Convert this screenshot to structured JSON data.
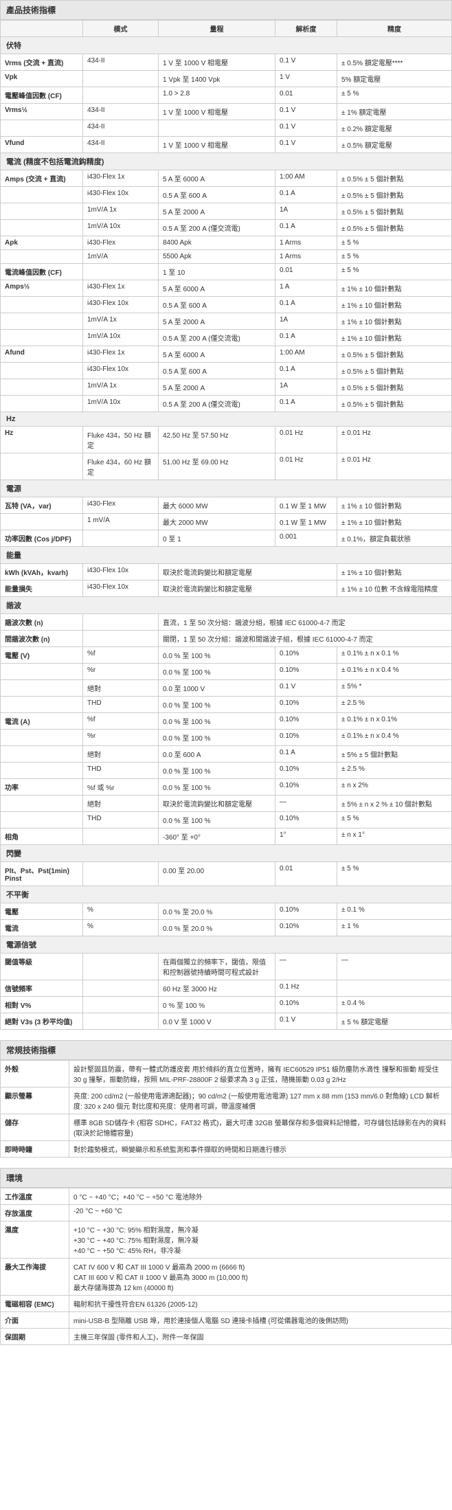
{
  "styles": {
    "bg_header": "#e8e8e8",
    "bg_subheader": "#f0f0f0",
    "border": "#cccccc",
    "font_body": 10,
    "font_header": 12
  },
  "spec_title": "產品技術指標",
  "cols": {
    "mode": "模式",
    "range": "量程",
    "res": "解析度",
    "acc": "精度"
  },
  "volt": {
    "header": "伏特",
    "rows": [
      {
        "label": "Vrms (交流 + 直流)",
        "mode": "434-II",
        "range": "1 V 至 1000 V 相電壓",
        "res": "0.1 V",
        "acc": "± 0.5% 額定電壓****"
      },
      {
        "label": "Vpk",
        "mode": "",
        "range": "1 Vpk 至 1400 Vpk",
        "res": "1 V",
        "acc": "5% 額定電壓"
      },
      {
        "label": "電壓峰值因數 (CF)",
        "mode": "",
        "range": "1.0 > 2.8",
        "res": "0.01",
        "acc": "± 5 %"
      },
      {
        "label": "Vrms½",
        "mode": "434-II",
        "range": "1 V 至 1000 V 相電壓",
        "res": "0.1 V",
        "acc": "± 1% 額定電壓"
      },
      {
        "label": "",
        "mode": "434-II",
        "range": "",
        "res": "0.1 V",
        "acc": "± 0.2% 額定電壓"
      },
      {
        "label": "Vfund",
        "mode": "434-II",
        "range": "1 V 至 1000 V 相電壓",
        "res": "0.1 V",
        "acc": "± 0.5% 額定電壓"
      }
    ]
  },
  "current": {
    "header": "電流 (精度不包括電流鈎精度)",
    "rows": [
      {
        "label": "Amps (交流 + 直流)",
        "mode": "i430-Flex 1x",
        "range": "5 A 至 6000 A",
        "res": "1:00 AM",
        "acc": "± 0.5% ± 5 個計數點"
      },
      {
        "label": "",
        "mode": "i430-Flex 10x",
        "range": "0.5 A 至 600 A",
        "res": "0.1 A",
        "acc": "± 0.5% ± 5 個計數點"
      },
      {
        "label": "",
        "mode": "1mV/A 1x",
        "range": "5 A 至 2000 A",
        "res": "1A",
        "acc": "± 0.5% ± 5 個計數點"
      },
      {
        "label": "",
        "mode": "1mV/A 10x",
        "range": "0.5 A 至 200 A (僅交流電)",
        "res": "0.1 A",
        "acc": "± 0.5% ± 5 個計數點"
      },
      {
        "label": "Apk",
        "mode": "i430-Flex",
        "range": "8400 Apk",
        "res": "1 Arms",
        "acc": "± 5 %"
      },
      {
        "label": "",
        "mode": "1mV/A",
        "range": "5500 Apk",
        "res": "1 Arms",
        "acc": "± 5 %"
      },
      {
        "label": "電流峰值因數 (CF)",
        "mode": "",
        "range": "1 至 10",
        "res": "0.01",
        "acc": "± 5 %"
      },
      {
        "label": "Amps½",
        "mode": "i430-Flex 1x",
        "range": "5 A 至 6000 A",
        "res": "1 A",
        "acc": "± 1% ± 10 個計數點"
      },
      {
        "label": "",
        "mode": "i430-Flex 10x",
        "range": "0.5 A 至 600 A",
        "res": "0.1 A",
        "acc": "± 1% ± 10 個計數點"
      },
      {
        "label": "",
        "mode": "1mV/A 1x",
        "range": "5 A 至 2000 A",
        "res": "1A",
        "acc": "± 1% ± 10 個計數點"
      },
      {
        "label": "",
        "mode": "1mV/A 10x",
        "range": "0.5 A 至 200 A (僅交流電)",
        "res": "0.1 A",
        "acc": "± 1% ± 10 個計數點"
      },
      {
        "label": "Afund",
        "mode": "i430-Flex 1x",
        "range": "5 A 至 6000 A",
        "res": "1:00 AM",
        "acc": "± 0.5% ± 5 個計數點"
      },
      {
        "label": "",
        "mode": "i430-Flex 10x",
        "range": "0.5 A 至 600 A",
        "res": "0.1 A",
        "acc": "± 0.5% ± 5 個計數點"
      },
      {
        "label": "",
        "mode": "1mV/A 1x",
        "range": "5 A 至 2000 A",
        "res": "1A",
        "acc": "± 0.5% ± 5 個計數點"
      },
      {
        "label": "",
        "mode": "1mV/A 10x",
        "range": "0.5 A 至 200 A (僅交流電)",
        "res": "0.1 A",
        "acc": "± 0.5% ± 5 個計數點"
      }
    ]
  },
  "hz": {
    "header": "Hz",
    "rows": [
      {
        "label": "Hz",
        "mode": "Fluke 434，50 Hz 額定",
        "range": "42.50 Hz 至 57.50 Hz",
        "res": "0.01 Hz",
        "acc": "± 0.01 Hz"
      },
      {
        "label": "",
        "mode": "Fluke 434，60 Hz 額定",
        "range": "51.00 Hz 至 69.00 Hz",
        "res": "0.01 Hz",
        "acc": "± 0.01 Hz"
      }
    ]
  },
  "power": {
    "header": "電源",
    "rows": [
      {
        "label": "瓦特 (VA，var)",
        "mode": "i430-Flex",
        "range": "最大 6000 MW",
        "res": "0.1 W 至 1 MW",
        "acc": "± 1% ± 10 個計數點"
      },
      {
        "label": "",
        "mode": "1 mV/A",
        "range": "最大 2000 MW",
        "res": "0.1 W 至 1 MW",
        "acc": "± 1% ± 10 個計數點"
      },
      {
        "label": "功率因數 (Cos j/DPF)",
        "mode": "",
        "range": "0 至 1",
        "res": "0.001",
        "acc": "± 0.1%，額定負載狀態"
      }
    ]
  },
  "energy": {
    "header": "能量",
    "rows": [
      {
        "label": "kWh (kVAh，kvarh)",
        "mode": "i430-Flex 10x",
        "range": "取決於電流鈎變比和額定電壓",
        "res": "",
        "acc": "± 1% ± 10 個計數點"
      },
      {
        "label": "能量損失",
        "mode": "i430-Flex 10x",
        "range": "取決於電流鈎變比和額定電壓",
        "res": "",
        "acc": "± 1% ± 10 位數 不含線電阻精度"
      }
    ]
  },
  "harm": {
    "header": "諧波",
    "rows": [
      {
        "label": "諧波次數 (n)",
        "mode": "",
        "range": "直流，1 至 50 次分組：諧波分組，根據 IEC 61000-4-7 而定",
        "res": "",
        "acc": ""
      },
      {
        "label": "間諧波次數 (n)",
        "mode": "",
        "range": "關閉，1 至 50 次分組：諧波和間諧波子組，根據 IEC 61000-4-7 而定",
        "res": "",
        "acc": ""
      },
      {
        "label": "電壓 (V)",
        "mode": "%f",
        "range": "0.0 % 至 100 %",
        "res": "0.10%",
        "acc": "± 0.1% ± n x 0.1 %"
      },
      {
        "label": "",
        "mode": "%r",
        "range": "0.0 % 至 100 %",
        "res": "0.10%",
        "acc": "± 0.1% ± n x 0.4 %"
      },
      {
        "label": "",
        "mode": "絕對",
        "range": "0.0 至 1000 V",
        "res": "0.1 V",
        "acc": "± 5% *"
      },
      {
        "label": "",
        "mode": "THD",
        "range": "0.0 % 至 100 %",
        "res": "0.10%",
        "acc": "± 2.5 %"
      },
      {
        "label": "電流 (A)",
        "mode": "%f",
        "range": "0.0 % 至 100 %",
        "res": "0.10%",
        "acc": "± 0.1% ± n x 0.1%"
      },
      {
        "label": "",
        "mode": "%r",
        "range": "0.0 % 至 100 %",
        "res": "0.10%",
        "acc": "± 0.1% ± n x 0.4 %"
      },
      {
        "label": "",
        "mode": "絕對",
        "range": "0.0 至 600 A",
        "res": "0.1 A",
        "acc": "± 5% ± 5 個計數點"
      },
      {
        "label": "",
        "mode": "THD",
        "range": "0.0 % 至 100 %",
        "res": "0.10%",
        "acc": "± 2.5 %"
      },
      {
        "label": "功率",
        "mode": "%f 或 %r",
        "range": "0.0 % 至 100 %",
        "res": "0.10%",
        "acc": "± n x 2%"
      },
      {
        "label": "",
        "mode": "絕對",
        "range": "取決於電流鈎變比和額定電壓",
        "res": "—",
        "acc": "± 5% ± n x 2 % ± 10 個計數點"
      },
      {
        "label": "",
        "mode": "THD",
        "range": "0.0 % 至 100 %",
        "res": "0.10%",
        "acc": "± 5 %"
      },
      {
        "label": "相角",
        "mode": "",
        "range": "-360° 至 +0°",
        "res": "1°",
        "acc": "± n x 1°"
      }
    ]
  },
  "flicker": {
    "header": "閃變",
    "rows": [
      {
        "label": "Plt、Pst、Pst(1min) Pinst",
        "mode": "",
        "range": "0.00 至 20.00",
        "res": "0.01",
        "acc": "± 5 %"
      }
    ]
  },
  "unbal": {
    "header": "不平衡",
    "rows": [
      {
        "label": "電壓",
        "mode": "%",
        "range": "0.0 % 至 20.0 %",
        "res": "0.10%",
        "acc": "± 0.1 %"
      },
      {
        "label": "電流",
        "mode": "%",
        "range": "0.0 % 至 20.0 %",
        "res": "0.10%",
        "acc": "± 1 %"
      }
    ]
  },
  "signal": {
    "header": "電源信號",
    "rows": [
      {
        "label": "閾值等級",
        "mode": "",
        "range": "在兩個獨立的頻率下，閾值，限值和控制器號持續時間可程式設計",
        "res": "—",
        "acc": "—"
      },
      {
        "label": "信號頻率",
        "mode": "",
        "range": "60 Hz 至 3000 Hz",
        "res": "0.1 Hz",
        "acc": ""
      },
      {
        "label": "相對 V%",
        "mode": "",
        "range": "0 % 至 100 %",
        "res": "0.10%",
        "acc": "± 0.4 %"
      },
      {
        "label": "絕對 V3s (3 秒平均值)",
        "mode": "",
        "range": "0.0 V 至 1000 V",
        "res": "0.1 V",
        "acc": "± 5 % 額定電壓"
      }
    ]
  },
  "general": {
    "title": "常規技術指標",
    "rows": [
      {
        "k": "外殼",
        "v": "設計堅固且防震，帶有一體式防護皮套 用於傾斜的直立位置時，擁有 IEC60529 IP51 級防塵防水滴性 撞擊和振動 經受住 30 g 撞擊，振動防線，按照 MIL-PRF-28800F 2 級要求為 3 g 正弦，隨機振動 0.03 g 2/Hz"
      },
      {
        "k": "顯示螢幕",
        "v": "亮度: 200 cd/m2 (一般使用電源適配器)；90 cd/m2 (一般使用電池電源) 127 mm x 88 mm (153 mm/6.0 對角線) LCD 解析度: 320 x 240 個元 對比度和亮度：使用者可調，帶溫度補償"
      },
      {
        "k": "儲存",
        "v": "標準 8GB SD儲存卡 (相容 SDHC，FAT32 格式)，最大可達 32GB 螢幕保存和多個資料記憶體，可存儲包括錄影在內的資料 (取決於記憶體容量)"
      },
      {
        "k": "即時時鐘",
        "v": "對於趨勢模式，瞬變顯示和系統監測和事件擷取的時間和日期進行標示"
      }
    ]
  },
  "env": {
    "title": "環境",
    "rows": [
      {
        "k": "工作溫度",
        "v": "0 °C ~ +40 °C；+40 °C ~ +50 °C 電池除外"
      },
      {
        "k": "存放溫度",
        "v": "-20 °C ~ +60 °C"
      },
      {
        "k": "濕度",
        "v": "+10 °C ~ +30 °C: 95% 相對濕度，無冷凝\n+30 °C ~ +40 °C: 75% 相對濕度，無冷凝\n+40 °C ~ +50 °C: 45% RH，非冷凝"
      },
      {
        "k": "最大工作海拔",
        "v": "CAT IV 600 V 和 CAT III 1000 V 最高為 2000 m (6666 ft)\nCAT III 600 V 和 CAT II 1000 V 最高為 3000 m (10,000 ft)\n最大存儲海拔為 12 km (40000 ft)"
      },
      {
        "k": "電磁相容 (EMC)",
        "v": "輻射和抗干擾性符合EN 61326 (2005-12)"
      },
      {
        "k": "介面",
        "v": "mini-USB-B 型隔離 USB 埠，用於連接個人電腦 SD 連接卡插槽 (可從儀器電池的後側訪問)"
      },
      {
        "k": "保固期",
        "v": "主機三年保固 (零件和人工)，附件一年保固"
      }
    ]
  }
}
